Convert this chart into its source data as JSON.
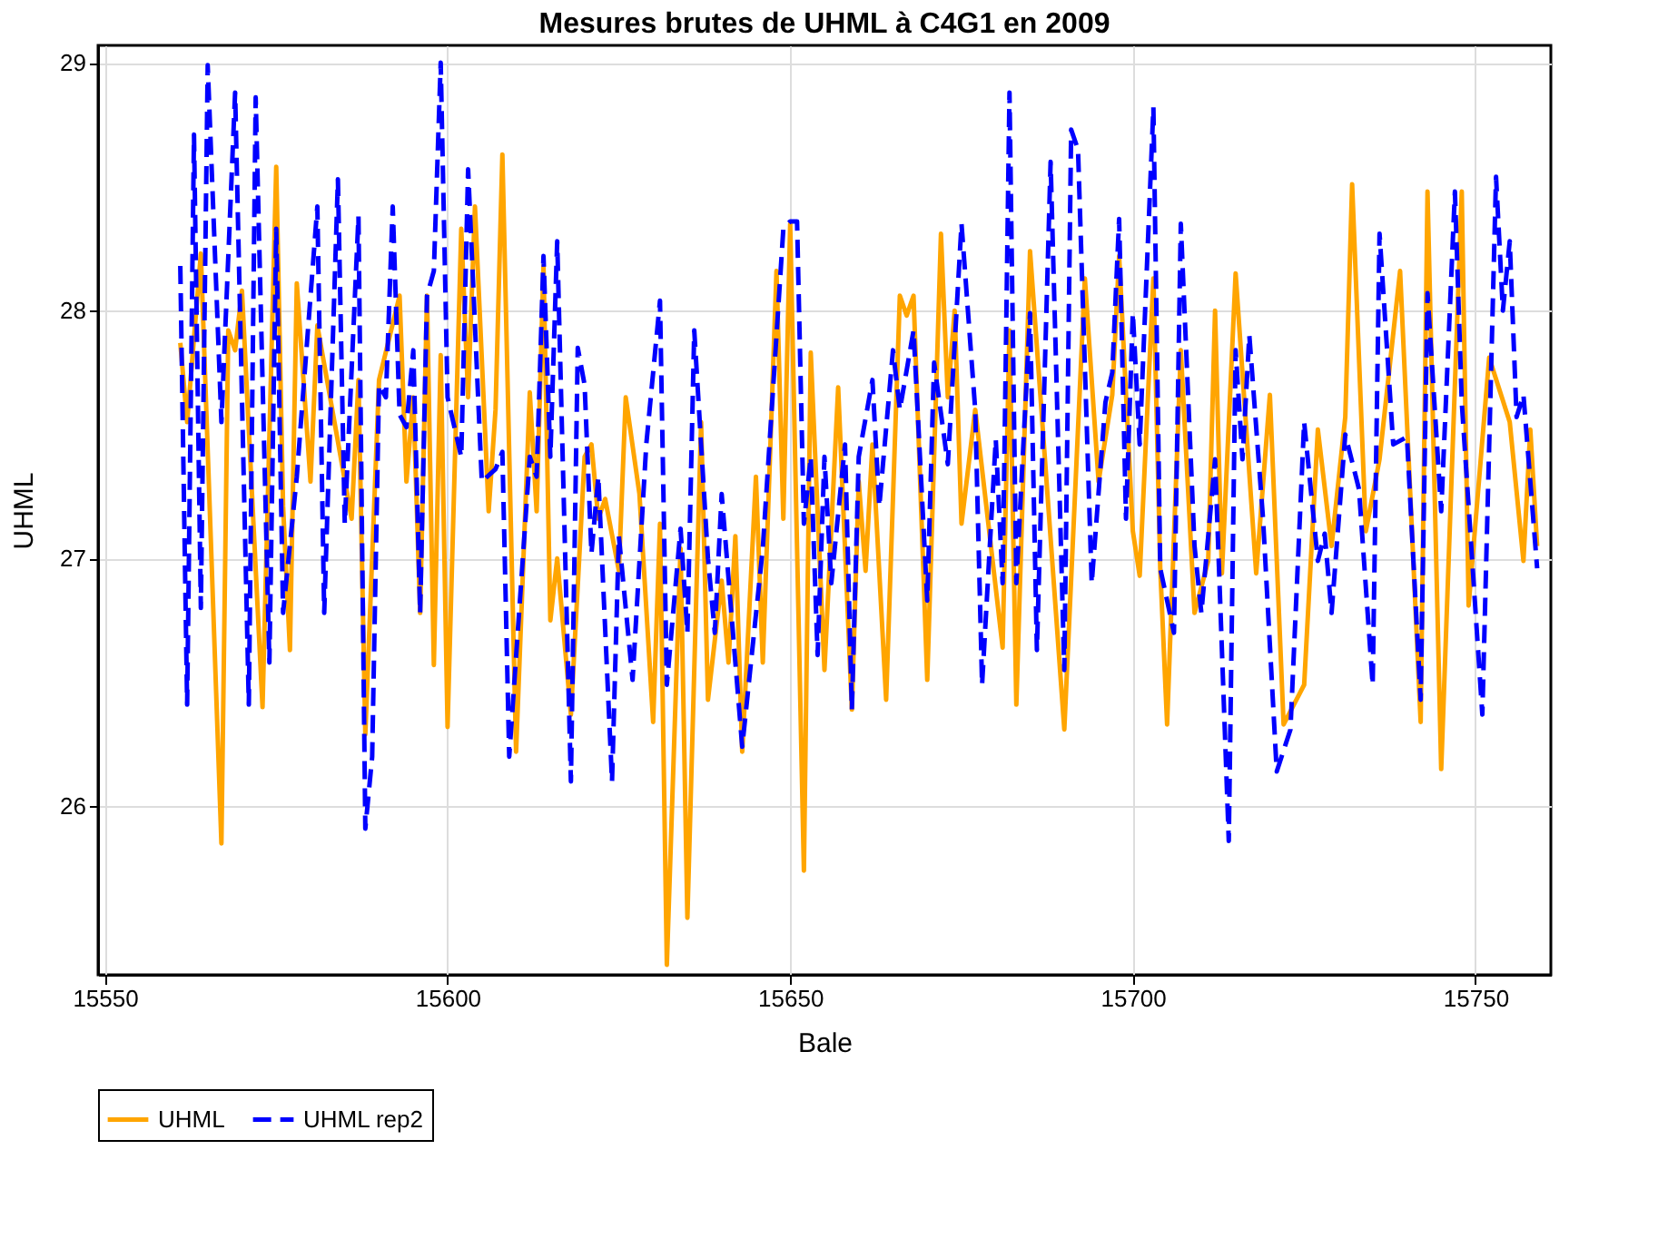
{
  "chart_data": {
    "type": "line",
    "title": "Mesures brutes de UHML à C4G1 en 2009",
    "xlabel": "Bale",
    "ylabel": "UHML",
    "xlim": [
      15549,
      15761
    ],
    "xticks": [
      15550,
      15600,
      15650,
      15700,
      15750
    ],
    "ylim": [
      25.32,
      29.07
    ],
    "yticks": [
      26,
      27,
      28,
      29
    ],
    "grid": true,
    "legend": "bottom",
    "marker": "none",
    "series": [
      {
        "name": "UHML",
        "color": "#ffa500",
        "line_style": "solid",
        "x": [
          15561,
          15562,
          15564,
          15567,
          15568,
          15569,
          15570,
          15573,
          15575,
          15576,
          15577,
          15578,
          15580,
          15581,
          15586,
          15587,
          15588,
          15590,
          15593,
          15594,
          15595,
          15596,
          15597,
          15598,
          15599,
          15600,
          15602,
          15603,
          15604,
          15606,
          15607,
          15608,
          15610,
          15612,
          15613,
          15614,
          15615,
          15616,
          15618,
          15620,
          15621,
          15622,
          15623,
          15625,
          15626,
          15628,
          15630,
          15631,
          15632,
          15634,
          15635,
          15637,
          15638,
          15640,
          15641,
          15642,
          15643,
          15645,
          15646,
          15648,
          15649,
          15650,
          15652,
          15653,
          15655,
          15657,
          15659,
          15660,
          15661,
          15662,
          15664,
          15666,
          15667,
          15668,
          15670,
          15672,
          15673,
          15674,
          15675,
          15677,
          15681,
          15682,
          15683,
          15685,
          15690,
          15693,
          15695,
          15697,
          15698,
          15700,
          15701,
          15703,
          15704,
          15705,
          15707,
          15709,
          15711,
          15712,
          15713,
          15715,
          15718,
          15720,
          15722,
          15725,
          15727,
          15729,
          15731,
          15732,
          15734,
          15736,
          15739,
          15742,
          15743,
          15745,
          15748,
          15749,
          15752,
          15755,
          15757,
          15758,
          15759
        ],
        "values": [
          27.87,
          27.55,
          28.23,
          25.85,
          27.92,
          27.84,
          28.08,
          26.4,
          28.58,
          27.21,
          26.63,
          28.11,
          27.31,
          27.94,
          27.16,
          27.72,
          26.29,
          27.72,
          28.06,
          27.31,
          27.65,
          26.78,
          28.06,
          26.57,
          27.82,
          26.32,
          28.33,
          27.65,
          28.42,
          27.19,
          27.6,
          28.63,
          26.22,
          27.67,
          27.19,
          28.18,
          26.75,
          27.0,
          26.37,
          27.41,
          27.46,
          27.16,
          27.24,
          26.95,
          27.65,
          27.26,
          26.34,
          27.14,
          25.36,
          27.04,
          25.55,
          27.55,
          26.43,
          26.91,
          26.58,
          27.09,
          26.22,
          27.33,
          26.58,
          28.16,
          27.16,
          28.35,
          25.74,
          27.83,
          26.55,
          27.69,
          26.39,
          27.31,
          26.95,
          27.46,
          26.43,
          28.06,
          27.98,
          28.06,
          26.51,
          28.31,
          27.65,
          28.0,
          27.14,
          27.6,
          26.64,
          27.92,
          26.41,
          28.24,
          26.31,
          28.13,
          27.31,
          27.66,
          28.22,
          27.11,
          26.93,
          28.13,
          26.96,
          26.33,
          27.84,
          26.78,
          26.99,
          28.0,
          26.94,
          28.15,
          26.94,
          27.66,
          26.33,
          26.49,
          27.52,
          27.05,
          27.57,
          28.51,
          27.11,
          27.4,
          28.16,
          26.34,
          28.48,
          26.15,
          28.48,
          26.81,
          27.81,
          27.55,
          26.99,
          27.52,
          27.05
        ]
      },
      {
        "name": "UHML rep2",
        "color": "#0000ff",
        "line_style": "dashed",
        "x": [
          15561,
          15562,
          15563,
          15564,
          15565,
          15567,
          15569,
          15571,
          15572,
          15574,
          15575,
          15576,
          15578,
          15581,
          15582,
          15584,
          15585,
          15587,
          15588,
          15589,
          15590,
          15591,
          15592,
          15593,
          15594,
          15595,
          15596,
          15597,
          15598,
          15599,
          15600,
          15602,
          15603,
          15605,
          15607,
          15608,
          15609,
          15612,
          15613,
          15614,
          15615,
          15616,
          15618,
          15619,
          15620,
          15621,
          15622,
          15624,
          15625,
          15627,
          15629,
          15631,
          15632,
          15634,
          15635,
          15636,
          15638,
          15639,
          15640,
          15643,
          15646,
          15649,
          15650,
          15651,
          15652,
          15653,
          15654,
          15655,
          15656,
          15658,
          15659,
          15660,
          15662,
          15663,
          15665,
          15666,
          15668,
          15670,
          15671,
          15673,
          15675,
          15677,
          15678,
          15680,
          15681,
          15682,
          15683,
          15685,
          15686,
          15688,
          15690,
          15691,
          15692,
          15694,
          15696,
          15697,
          15698,
          15699,
          15700,
          15701,
          15703,
          15704,
          15706,
          15707,
          15709,
          15710,
          15712,
          15714,
          15715,
          15716,
          15717,
          15719,
          15721,
          15723,
          15725,
          15727,
          15728,
          15729,
          15731,
          15733,
          15735,
          15736,
          15738,
          15740,
          15742,
          15743,
          15745,
          15747,
          15748,
          15751,
          15753,
          15754,
          15755,
          15756,
          15757,
          15759
        ],
        "values": [
          28.18,
          26.41,
          28.71,
          26.8,
          28.99,
          27.55,
          28.88,
          26.41,
          28.86,
          26.58,
          28.33,
          26.78,
          27.33,
          28.42,
          26.78,
          28.53,
          27.14,
          28.38,
          25.91,
          26.2,
          27.7,
          27.65,
          28.42,
          27.58,
          27.53,
          27.84,
          26.78,
          28.06,
          28.16,
          29.0,
          27.65,
          27.41,
          28.57,
          27.31,
          27.36,
          27.43,
          26.2,
          27.41,
          27.33,
          28.22,
          27.41,
          28.28,
          26.1,
          27.85,
          27.7,
          27.02,
          27.33,
          26.1,
          27.09,
          26.51,
          27.46,
          28.04,
          26.49,
          27.12,
          26.7,
          27.92,
          27.0,
          26.7,
          27.26,
          26.24,
          27.04,
          28.33,
          28.36,
          28.36,
          27.14,
          27.41,
          26.61,
          27.41,
          26.9,
          27.46,
          26.39,
          27.41,
          27.72,
          27.21,
          27.84,
          27.6,
          27.92,
          26.83,
          27.79,
          27.38,
          28.35,
          27.6,
          26.49,
          27.48,
          26.9,
          28.88,
          26.9,
          27.99,
          26.63,
          28.6,
          26.55,
          28.73,
          28.65,
          26.9,
          27.63,
          27.75,
          28.37,
          27.16,
          27.99,
          27.46,
          28.82,
          26.96,
          26.7,
          28.35,
          27.05,
          26.78,
          27.4,
          25.86,
          27.84,
          27.4,
          27.9,
          27.16,
          26.14,
          26.31,
          27.55,
          26.99,
          27.1,
          26.78,
          27.5,
          27.28,
          26.49,
          28.31,
          27.46,
          27.49,
          26.43,
          28.07,
          27.19,
          28.48,
          27.63,
          26.37,
          28.54,
          28.0,
          28.28,
          27.57,
          27.66,
          26.96
        ]
      }
    ]
  }
}
